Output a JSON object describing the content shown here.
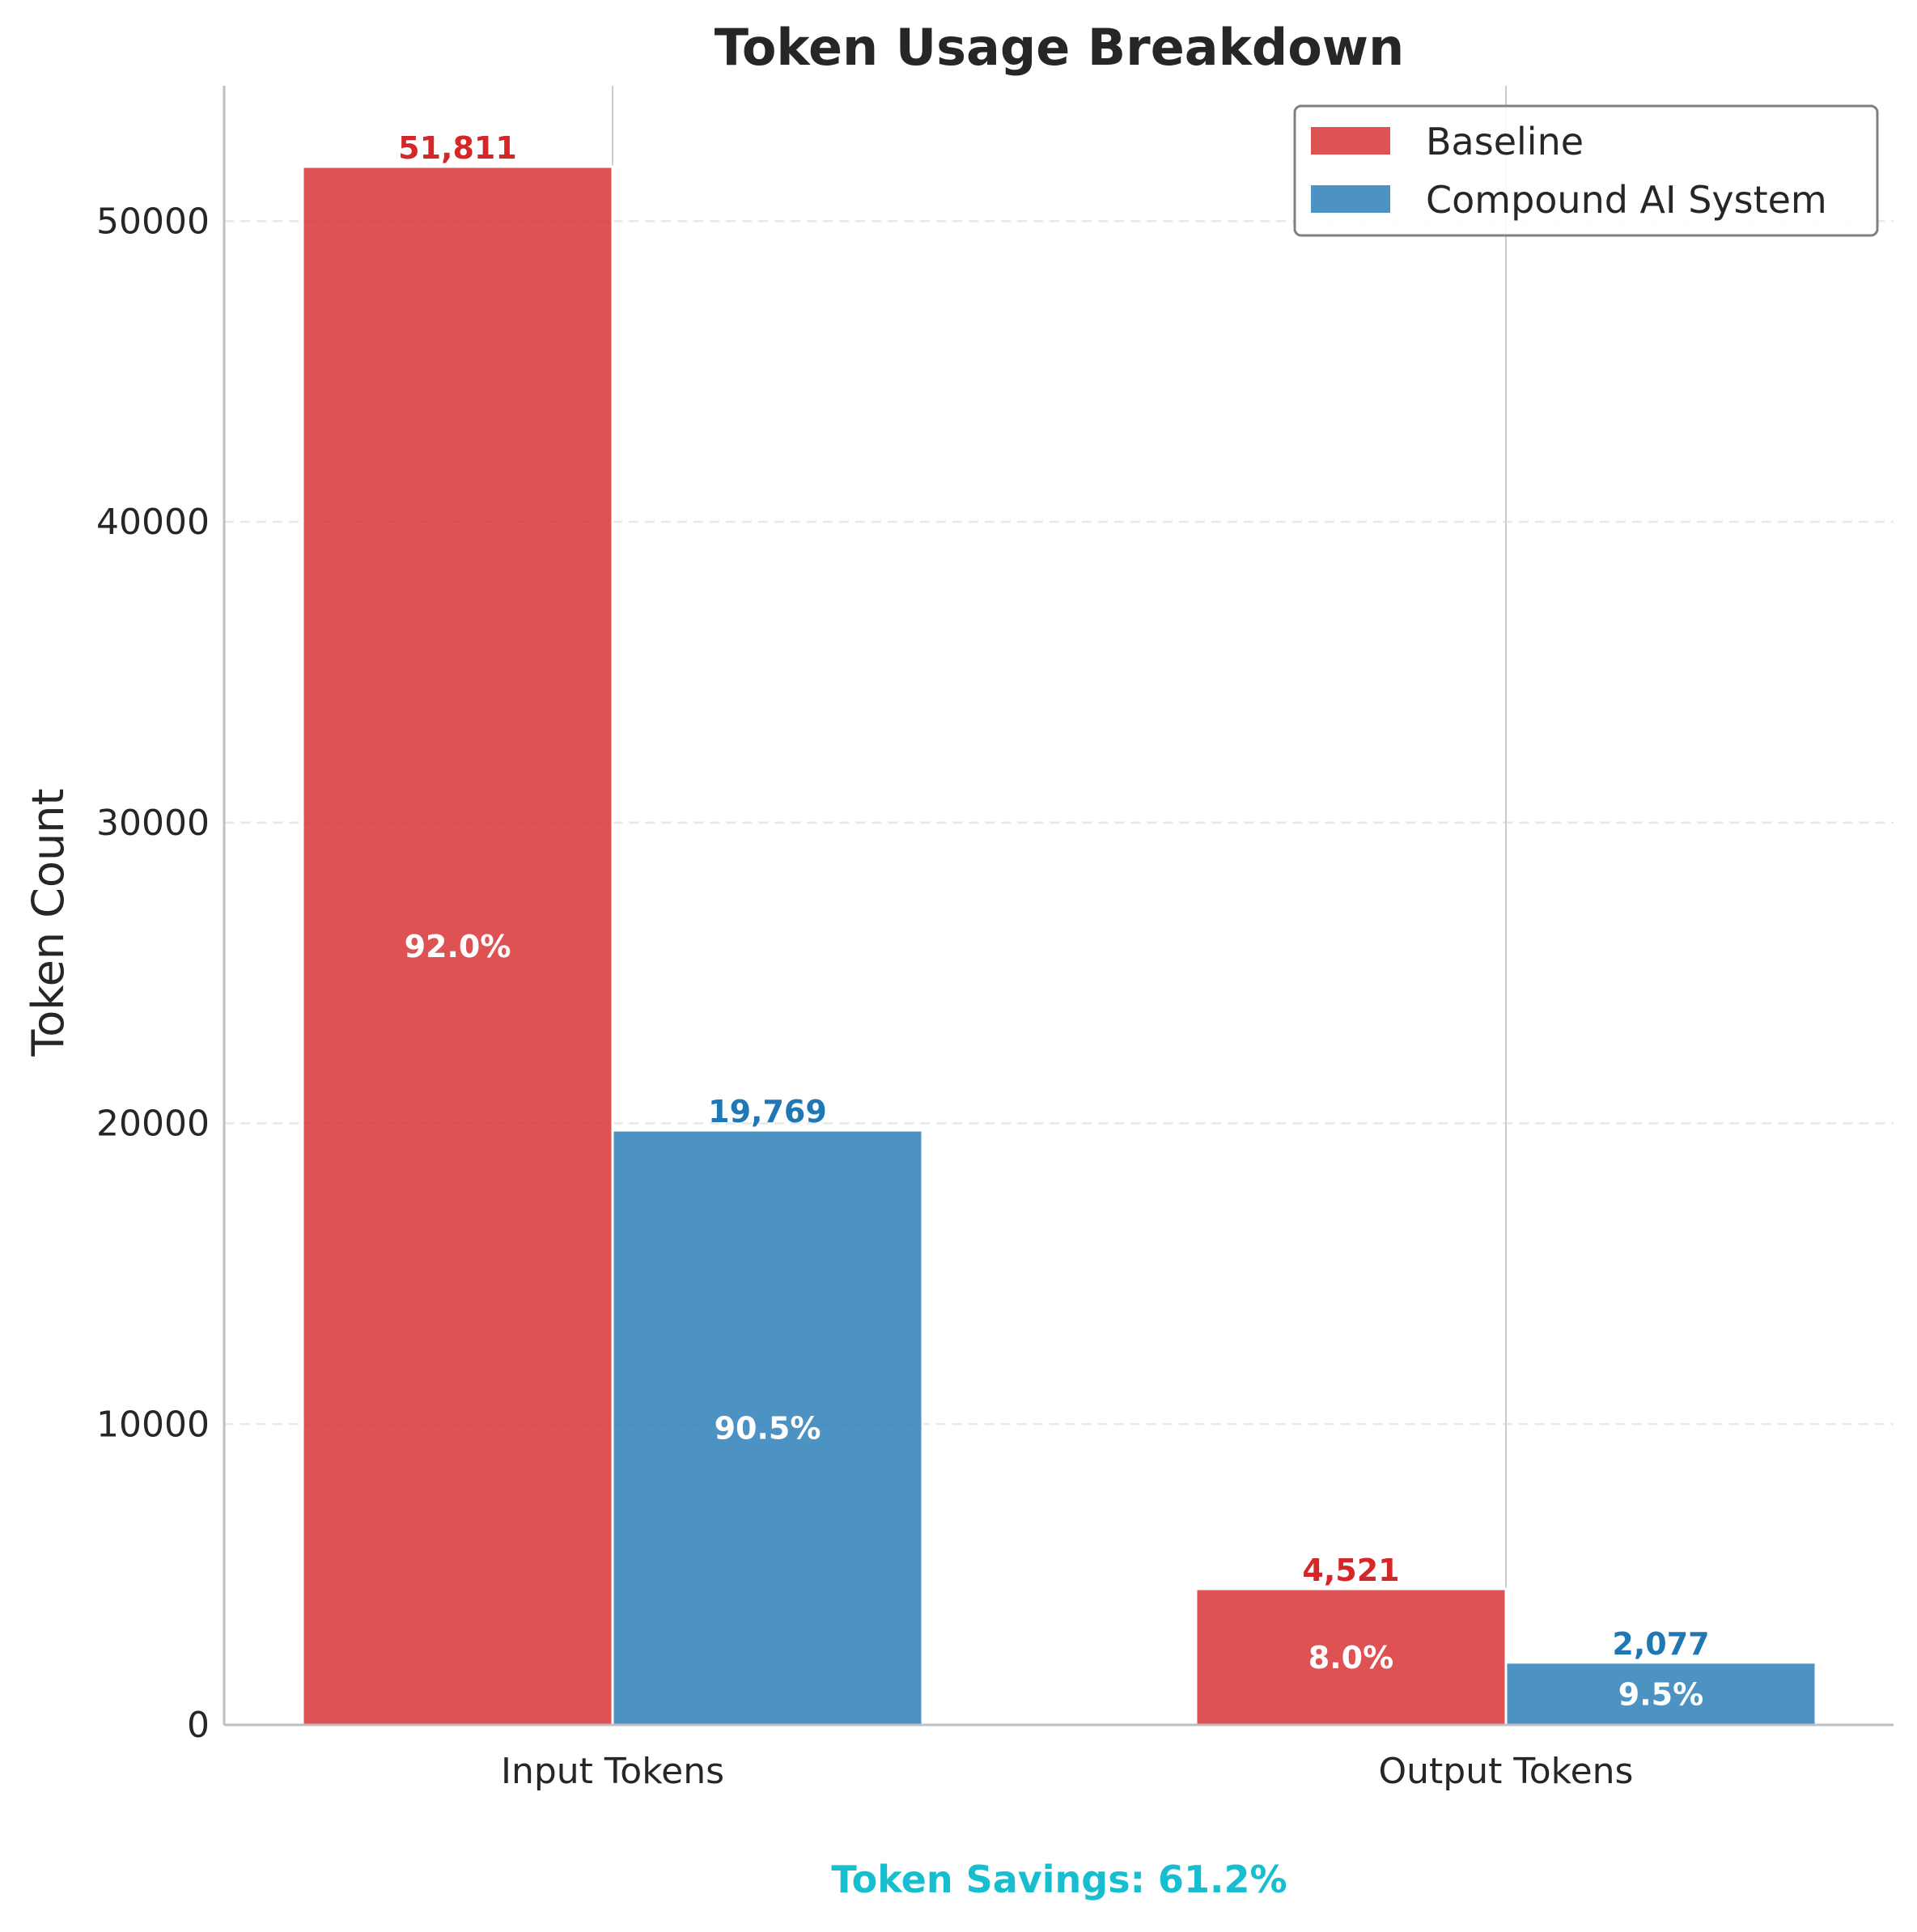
{
  "chart_data": {
    "type": "bar",
    "title": "Token Usage Breakdown",
    "xlabel": "",
    "ylabel": "Token Count",
    "categories": [
      "Input Tokens",
      "Output Tokens"
    ],
    "ylim": [
      0,
      54500
    ],
    "yticks": [
      "0",
      "10000",
      "20000",
      "30000",
      "40000",
      "50000"
    ],
    "ytick_values": [
      0,
      10000,
      20000,
      30000,
      40000,
      50000
    ],
    "grid": "y-dashed",
    "legend_position": "top-right",
    "series": [
      {
        "name": "Baseline",
        "color": "#d62728",
        "values": [
          51811,
          4521
        ],
        "value_labels": [
          "51,811",
          "4,521"
        ],
        "percent_labels": [
          "92.0%",
          "8.0%"
        ]
      },
      {
        "name": "Compound AI System",
        "color": "#1f77b4",
        "values": [
          19769,
          2077
        ],
        "value_labels": [
          "19,769",
          "2,077"
        ],
        "percent_labels": [
          "90.5%",
          "9.5%"
        ]
      }
    ],
    "annotation": "Token Savings: 61.2%",
    "annotation_color": "#17becf"
  }
}
